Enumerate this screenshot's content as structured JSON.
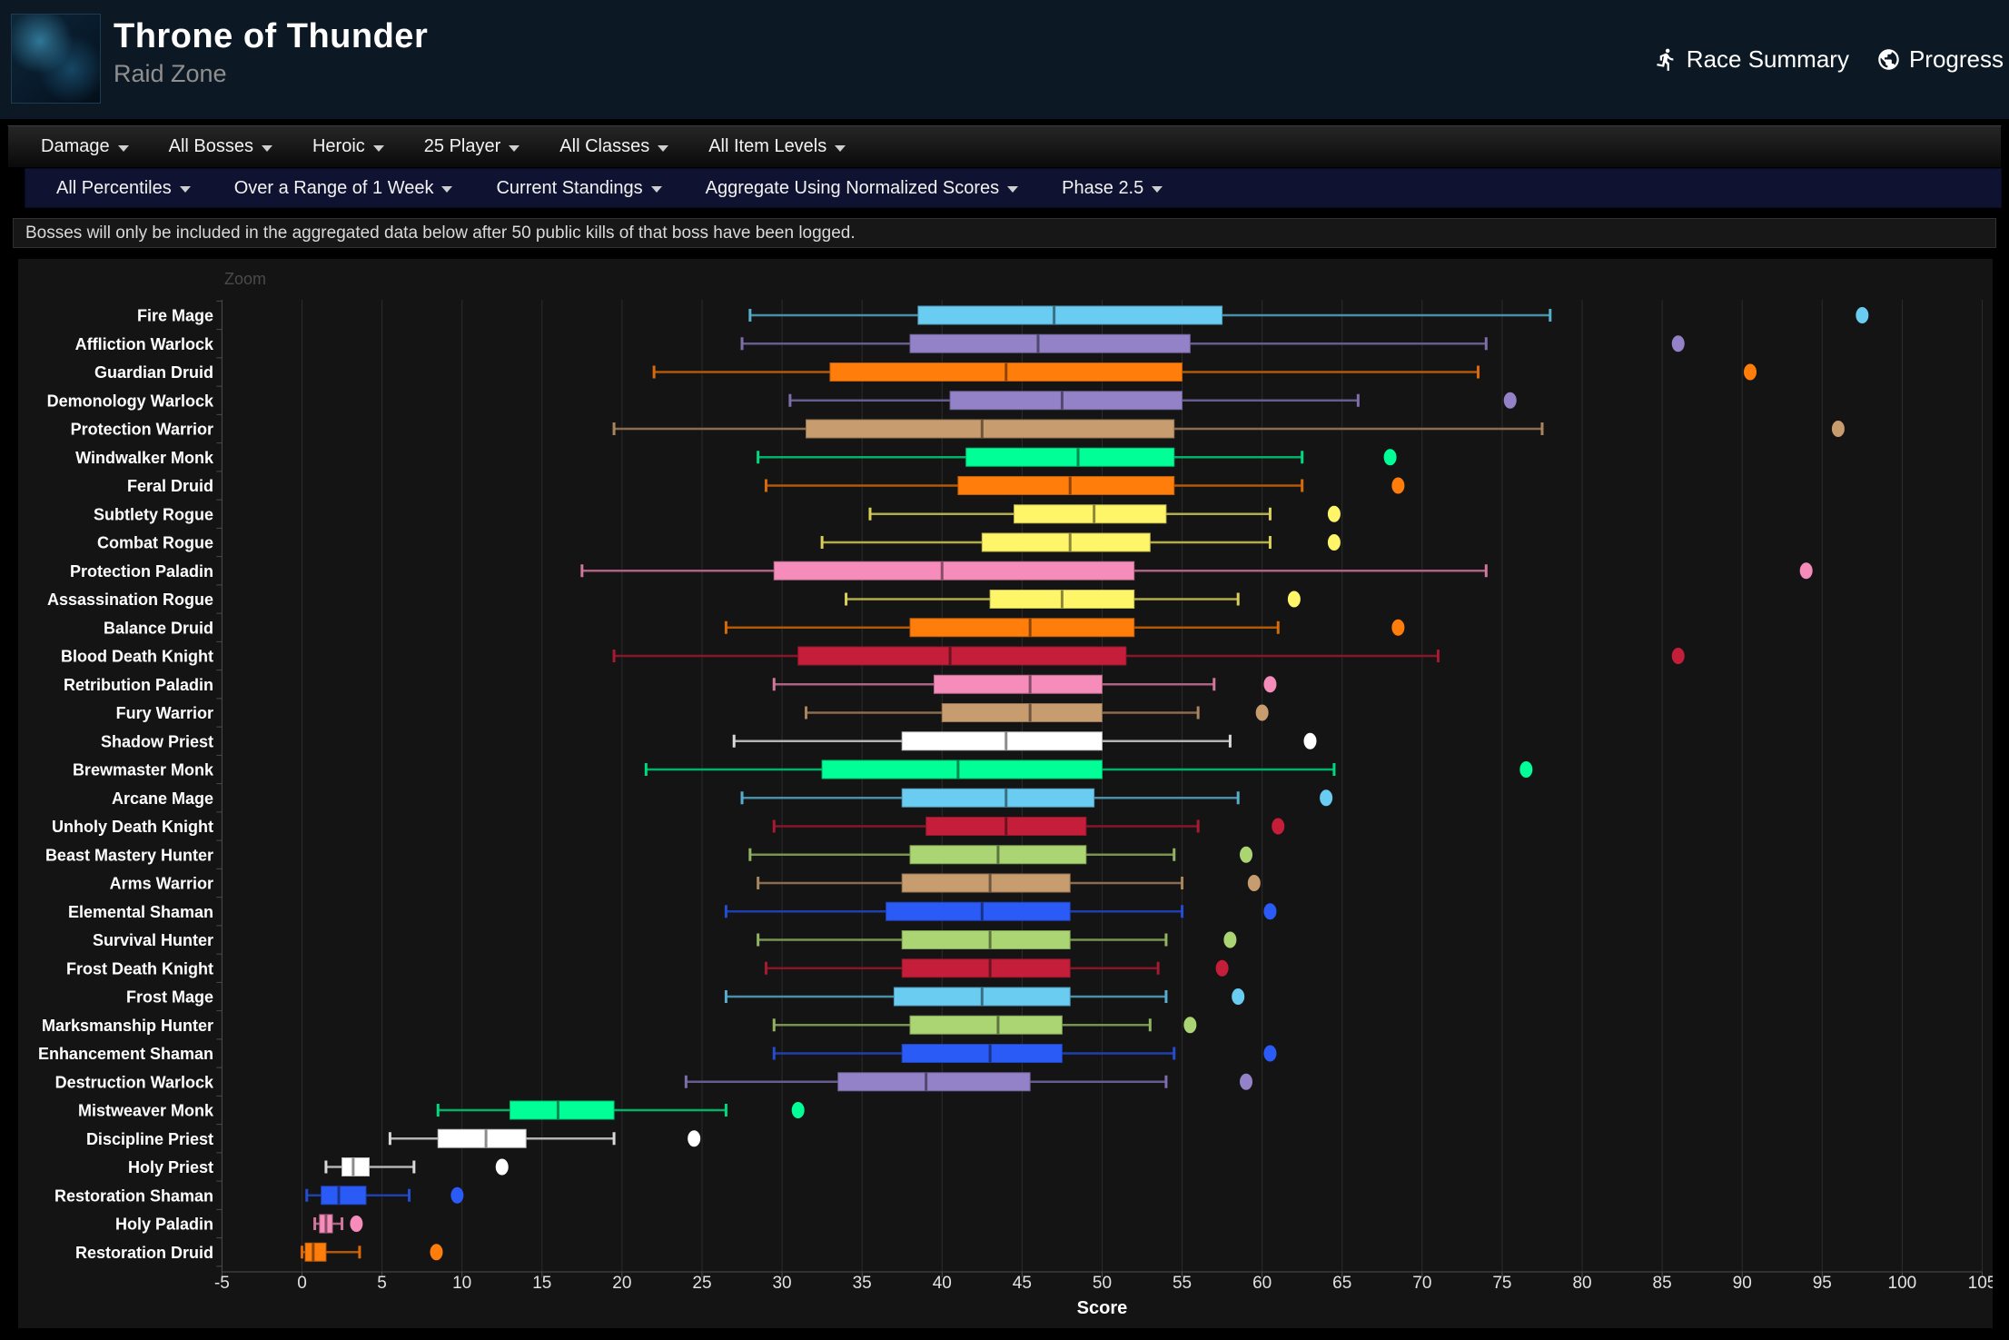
{
  "header": {
    "title": "Throne of Thunder",
    "subtitle": "Raid Zone",
    "links": [
      {
        "label": "Race Summary",
        "icon": "runner-icon"
      },
      {
        "label": "Progress",
        "icon": "globe-icon"
      }
    ]
  },
  "primary_filters": [
    "Damage",
    "All Bosses",
    "Heroic",
    "25 Player",
    "All Classes",
    "All Item Levels"
  ],
  "secondary_filters": [
    "All Percentiles",
    "Over a Range of 1 Week",
    "Current Standings",
    "Aggregate Using Normalized Scores",
    "Phase 2.5"
  ],
  "notice": "Bosses will only be included in the aggregated data below after 50 public kills of that boss have been logged.",
  "chart_data": {
    "type": "boxplot",
    "zoom_label": "Zoom",
    "xlabel": "Score",
    "xlim": [
      -5,
      105
    ],
    "x_ticks": [
      -5,
      0,
      5,
      10,
      15,
      20,
      25,
      30,
      35,
      40,
      45,
      50,
      55,
      60,
      65,
      70,
      75,
      80,
      85,
      90,
      95,
      100,
      105
    ],
    "grid": true,
    "legend": false,
    "colors": {
      "grid": "#2c2c2c",
      "axis": "#4b4b4b",
      "tick_label": "#e2e2e2",
      "spec_label": "#ffffff",
      "background": "#141414"
    },
    "class_colors": {
      "mage": "#69CCF0",
      "warlock": "#9482C9",
      "druid": "#FF7D0A",
      "warrior": "#C79C6E",
      "monk": "#00FF96",
      "rogue": "#FFF569",
      "paladin": "#F58CBA",
      "death-knight": "#C41E3A",
      "priest": "#FFFFFF",
      "hunter": "#ABD473",
      "shaman": "#2B5BF7"
    },
    "series": [
      {
        "name": "Fire Mage",
        "class": "mage",
        "low": 28,
        "q1": 38.5,
        "median": 47,
        "q3": 57.5,
        "high": 78,
        "outliers": [
          97.5
        ]
      },
      {
        "name": "Affliction Warlock",
        "class": "warlock",
        "low": 27.5,
        "q1": 38,
        "median": 46,
        "q3": 55.5,
        "high": 74,
        "outliers": [
          86
        ]
      },
      {
        "name": "Guardian Druid",
        "class": "druid",
        "low": 22,
        "q1": 33,
        "median": 44,
        "q3": 55,
        "high": 73.5,
        "outliers": [
          90.5
        ]
      },
      {
        "name": "Demonology Warlock",
        "class": "warlock",
        "low": 30.5,
        "q1": 40.5,
        "median": 47.5,
        "q3": 55,
        "high": 66,
        "outliers": [
          75.5
        ]
      },
      {
        "name": "Protection Warrior",
        "class": "warrior",
        "low": 19.5,
        "q1": 31.5,
        "median": 42.5,
        "q3": 54.5,
        "high": 77.5,
        "outliers": [
          96
        ]
      },
      {
        "name": "Windwalker Monk",
        "class": "monk",
        "low": 28.5,
        "q1": 41.5,
        "median": 48.5,
        "q3": 54.5,
        "high": 62.5,
        "outliers": [
          68
        ]
      },
      {
        "name": "Feral Druid",
        "class": "druid",
        "low": 29,
        "q1": 41,
        "median": 48,
        "q3": 54.5,
        "high": 62.5,
        "outliers": [
          68.5
        ]
      },
      {
        "name": "Subtlety Rogue",
        "class": "rogue",
        "low": 35.5,
        "q1": 44.5,
        "median": 49.5,
        "q3": 54,
        "high": 60.5,
        "outliers": [
          64.5
        ]
      },
      {
        "name": "Combat Rogue",
        "class": "rogue",
        "low": 32.5,
        "q1": 42.5,
        "median": 48,
        "q3": 53,
        "high": 60.5,
        "outliers": [
          64.5
        ]
      },
      {
        "name": "Protection Paladin",
        "class": "paladin",
        "low": 17.5,
        "q1": 29.5,
        "median": 40,
        "q3": 52,
        "high": 74,
        "outliers": [
          94
        ]
      },
      {
        "name": "Assassination Rogue",
        "class": "rogue",
        "low": 34,
        "q1": 43,
        "median": 47.5,
        "q3": 52,
        "high": 58.5,
        "outliers": [
          62
        ]
      },
      {
        "name": "Balance Druid",
        "class": "druid",
        "low": 26.5,
        "q1": 38,
        "median": 45.5,
        "q3": 52,
        "high": 61,
        "outliers": [
          68.5
        ]
      },
      {
        "name": "Blood Death Knight",
        "class": "death-knight",
        "low": 19.5,
        "q1": 31,
        "median": 40.5,
        "q3": 51.5,
        "high": 71,
        "outliers": [
          86
        ]
      },
      {
        "name": "Retribution Paladin",
        "class": "paladin",
        "low": 29.5,
        "q1": 39.5,
        "median": 45.5,
        "q3": 50,
        "high": 57,
        "outliers": [
          60.5
        ]
      },
      {
        "name": "Fury Warrior",
        "class": "warrior",
        "low": 31.5,
        "q1": 40,
        "median": 45.5,
        "q3": 50,
        "high": 56,
        "outliers": [
          60
        ]
      },
      {
        "name": "Shadow Priest",
        "class": "priest",
        "low": 27,
        "q1": 37.5,
        "median": 44,
        "q3": 50,
        "high": 58,
        "outliers": [
          63
        ]
      },
      {
        "name": "Brewmaster Monk",
        "class": "monk",
        "low": 21.5,
        "q1": 32.5,
        "median": 41,
        "q3": 50,
        "high": 64.5,
        "outliers": [
          76.5
        ]
      },
      {
        "name": "Arcane Mage",
        "class": "mage",
        "low": 27.5,
        "q1": 37.5,
        "median": 44,
        "q3": 49.5,
        "high": 58.5,
        "outliers": [
          64
        ]
      },
      {
        "name": "Unholy Death Knight",
        "class": "death-knight",
        "low": 29.5,
        "q1": 39,
        "median": 44,
        "q3": 49,
        "high": 56,
        "outliers": [
          61
        ]
      },
      {
        "name": "Beast Mastery Hunter",
        "class": "hunter",
        "low": 28,
        "q1": 38,
        "median": 43.5,
        "q3": 49,
        "high": 54.5,
        "outliers": [
          59
        ]
      },
      {
        "name": "Arms Warrior",
        "class": "warrior",
        "low": 28.5,
        "q1": 37.5,
        "median": 43,
        "q3": 48,
        "high": 55,
        "outliers": [
          59.5
        ]
      },
      {
        "name": "Elemental Shaman",
        "class": "shaman",
        "low": 26.5,
        "q1": 36.5,
        "median": 42.5,
        "q3": 48,
        "high": 55,
        "outliers": [
          60.5
        ]
      },
      {
        "name": "Survival Hunter",
        "class": "hunter",
        "low": 28.5,
        "q1": 37.5,
        "median": 43,
        "q3": 48,
        "high": 54,
        "outliers": [
          58
        ]
      },
      {
        "name": "Frost Death Knight",
        "class": "death-knight",
        "low": 29,
        "q1": 37.5,
        "median": 43,
        "q3": 48,
        "high": 53.5,
        "outliers": [
          57.5
        ]
      },
      {
        "name": "Frost Mage",
        "class": "mage",
        "low": 26.5,
        "q1": 37,
        "median": 42.5,
        "q3": 48,
        "high": 54,
        "outliers": [
          58.5
        ]
      },
      {
        "name": "Marksmanship Hunter",
        "class": "hunter",
        "low": 29.5,
        "q1": 38,
        "median": 43.5,
        "q3": 47.5,
        "high": 53,
        "outliers": [
          55.5
        ]
      },
      {
        "name": "Enhancement Shaman",
        "class": "shaman",
        "low": 29.5,
        "q1": 37.5,
        "median": 43,
        "q3": 47.5,
        "high": 54.5,
        "outliers": [
          60.5
        ]
      },
      {
        "name": "Destruction Warlock",
        "class": "warlock",
        "low": 24,
        "q1": 33.5,
        "median": 39,
        "q3": 45.5,
        "high": 54,
        "outliers": [
          59
        ]
      },
      {
        "name": "Mistweaver Monk",
        "class": "monk",
        "low": 8.5,
        "q1": 13,
        "median": 16,
        "q3": 19.5,
        "high": 26.5,
        "outliers": [
          31
        ]
      },
      {
        "name": "Discipline Priest",
        "class": "priest",
        "low": 5.5,
        "q1": 8.5,
        "median": 11.5,
        "q3": 14,
        "high": 19.5,
        "outliers": [
          24.5
        ]
      },
      {
        "name": "Holy Priest",
        "class": "priest",
        "low": 1.5,
        "q1": 2.5,
        "median": 3.2,
        "q3": 4.2,
        "high": 7,
        "outliers": [
          12.5
        ]
      },
      {
        "name": "Restoration Shaman",
        "class": "shaman",
        "low": 0.3,
        "q1": 1.2,
        "median": 2.3,
        "q3": 4,
        "high": 6.7,
        "outliers": [
          9.7
        ]
      },
      {
        "name": "Holy Paladin",
        "class": "paladin",
        "low": 0.8,
        "q1": 1.1,
        "median": 1.5,
        "q3": 1.9,
        "high": 2.5,
        "outliers": [
          3.4
        ]
      },
      {
        "name": "Restoration Druid",
        "class": "druid",
        "low": 0,
        "q1": 0.2,
        "median": 0.7,
        "q3": 1.5,
        "high": 3.6,
        "outliers": [
          8.4
        ]
      }
    ]
  }
}
